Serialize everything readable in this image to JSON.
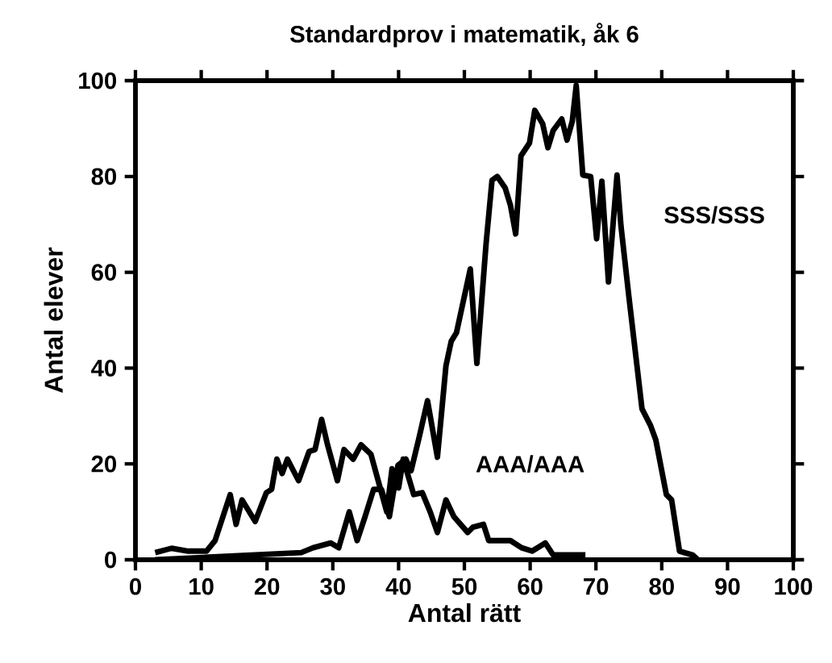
{
  "chart_data": {
    "type": "line",
    "title": "Standardprov i matematik, åk 6",
    "xlabel": "Antal rätt",
    "ylabel": "Antal elever",
    "xlim": [
      0,
      100
    ],
    "ylim": [
      0,
      100
    ],
    "xticks": [
      0,
      10,
      20,
      30,
      40,
      50,
      60,
      70,
      80,
      90,
      100
    ],
    "yticks": [
      0,
      20,
      40,
      60,
      80,
      100
    ],
    "grid": false,
    "legend": false,
    "marker": "none",
    "line_style": "solid",
    "series": [
      {
        "name": "AAA/AAA",
        "color": "#000000",
        "x": [
          3,
          5.5,
          8,
          10.8,
          12.1,
          14.4,
          15.3,
          16.2,
          18.2,
          19.9,
          20.7,
          21.5,
          22.3,
          23.1,
          24.8,
          26.4,
          27.3,
          28.3,
          29.2,
          30.7,
          31.7,
          33.1,
          34.3,
          35.8,
          37,
          38.2,
          39,
          40,
          40.7,
          42.3,
          43.6,
          44.8,
          45.9,
          47.2,
          48.4,
          50.5,
          51.3,
          52.9,
          53.7,
          57,
          58.7,
          60.3,
          62.3,
          63.5,
          68.4
        ],
        "values": [
          1.5,
          2.4,
          1.8,
          1.8,
          4,
          13.6,
          7.4,
          12.5,
          8,
          14,
          14.7,
          21,
          18,
          21,
          16.5,
          22.6,
          23,
          29.3,
          24,
          16.5,
          23,
          21,
          24,
          22,
          16,
          10,
          19,
          15,
          21,
          13.6,
          14,
          10,
          5.7,
          12.5,
          9,
          5.7,
          6.8,
          7.4,
          4,
          4,
          2.5,
          1.8,
          3.5,
          1,
          1
        ]
      },
      {
        "name": "SSS/SSS",
        "color": "#000000",
        "x": [
          3,
          25.2,
          27,
          29.7,
          30.9,
          32.5,
          33.7,
          34.9,
          36.2,
          37.4,
          38.6,
          39.9,
          41.1,
          41.9,
          43.1,
          44.4,
          45.9,
          47.2,
          48,
          48.8,
          50.9,
          51.9,
          53.3,
          54.2,
          55,
          56.2,
          57,
          57.8,
          58.6,
          59.9,
          60.7,
          61.9,
          62.7,
          63.5,
          64.8,
          65.6,
          66.4,
          67,
          68,
          69.2,
          70.1,
          70.9,
          71.9,
          73.2,
          73.8,
          75,
          77,
          78.3,
          79.1,
          80.7,
          81.5,
          82.7,
          84.7,
          85.5
        ],
        "values": [
          0,
          1.5,
          2.5,
          3.5,
          2.5,
          10,
          4,
          9,
          14.7,
          14.7,
          9,
          19.7,
          21,
          18.6,
          25.4,
          33.2,
          21.4,
          40.5,
          45.6,
          47.4,
          60.7,
          41,
          66,
          79.2,
          80,
          77.6,
          74,
          68,
          84.3,
          87,
          93.8,
          91,
          86,
          89.6,
          92,
          87.6,
          91.5,
          99,
          80.3,
          80,
          67,
          79,
          58,
          80.3,
          69.7,
          55,
          31.5,
          28,
          25,
          13.6,
          12.5,
          1.8,
          1,
          0
        ]
      }
    ]
  }
}
